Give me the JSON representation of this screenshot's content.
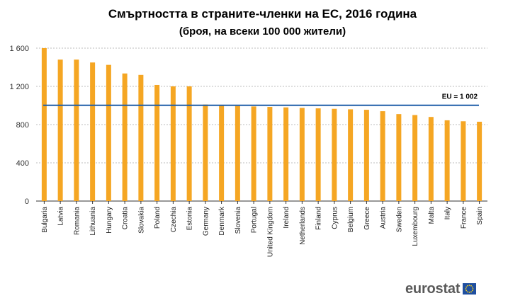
{
  "title": "Смъртността в страните-членки на ЕС, 2016 година",
  "subtitle": "(броя, на всеки 100 000 жители)",
  "logo_text": "eurostat",
  "colors": {
    "bar": "#f5a623",
    "reference_line": "#1f5fa8",
    "grid": "#bdbdbd",
    "eu_flag": "#1f4fa0"
  },
  "chart_data": {
    "type": "bar",
    "title": "Смъртността в страните-членки на ЕС, 2016 година",
    "subtitle": "(броя, на всеки 100 000 жители)",
    "categories": [
      "Bulgaria",
      "Latvia",
      "Romania",
      "Lithuania",
      "Hungary",
      "Croatia",
      "Slovakia",
      "Poland",
      "Czechia",
      "Estonia",
      "Germany",
      "Denmark",
      "Slovenia",
      "Portugal",
      "United Kingdom",
      "Ireland",
      "Netherlands",
      "Finland",
      "Cyprus",
      "Belgium",
      "Greece",
      "Austria",
      "Sweden",
      "Luxembourg",
      "Malta",
      "Italy",
      "France",
      "Spain"
    ],
    "values": [
      1600,
      1480,
      1480,
      1450,
      1425,
      1335,
      1320,
      1215,
      1200,
      1200,
      1010,
      1005,
      995,
      990,
      985,
      980,
      975,
      970,
      965,
      960,
      955,
      940,
      910,
      900,
      880,
      845,
      835,
      830
    ],
    "reference_line": {
      "label": "EU = 1 002",
      "value": 1002
    },
    "yticks": [
      0,
      400,
      800,
      1200,
      1600
    ],
    "ytick_labels": [
      "0",
      "400",
      "800",
      "1 200",
      "1 600"
    ],
    "ylim": [
      0,
      1600
    ],
    "xlabel": "",
    "ylabel": "",
    "grid": true
  }
}
